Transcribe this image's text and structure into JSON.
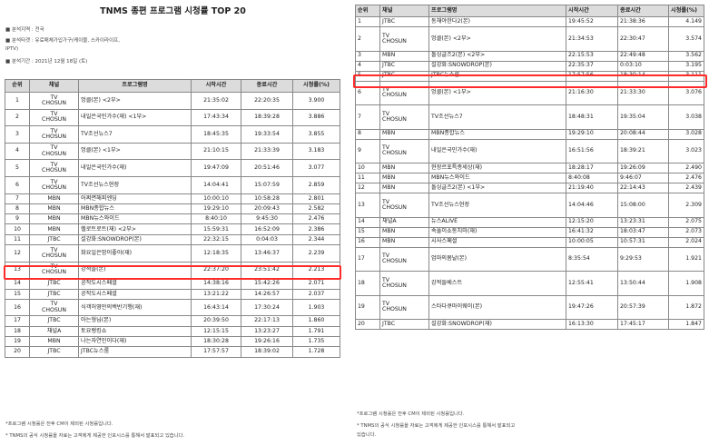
{
  "left": {
    "title": "TNMS 종편 프로그램 시청률 TOP 20",
    "meta": [
      "■ 분석지역 : 전국",
      "■ 분석타겟 : 유료매체가입가구(케이블, 스카이라이프,",
      "IPTV)",
      "■ 분석기간 : 2021년 12월 18일 (토)"
    ],
    "headers": [
      "순위",
      "채널",
      "프로그램명",
      "시작시간",
      "종료시간",
      "시청률(%)"
    ],
    "rows": [
      [
        "1",
        "TV\nCHOSUN",
        "엉클(본) <2부>",
        "21:35:02",
        "22:20:35",
        "3.900"
      ],
      [
        "2",
        "TV\nCHOSUN",
        "내일은국민가수(재) <1부>",
        "17:43:34",
        "18:39:28",
        "3.886"
      ],
      [
        "3",
        "TV\nCHOSUN",
        "TV조선뉴스7",
        "18:45:35",
        "19:33:54",
        "3.855"
      ],
      [
        "4",
        "TV\nCHOSUN",
        "엉클(본) <1부>",
        "21:10:15",
        "21:33:39",
        "3.183"
      ],
      [
        "5",
        "TV\nCHOSUN",
        "내일은국민가수(재)",
        "19:47:09",
        "20:51:46",
        "3.077"
      ],
      [
        "6",
        "TV\nCHOSUN",
        "TV조선뉴스현장",
        "14:04:41",
        "15:07:59",
        "2.859"
      ],
      [
        "7",
        "MBN",
        "어쩌면해피엔딩",
        "10:00:10",
        "10:58:28",
        "2.801"
      ],
      [
        "8",
        "MBN",
        "MBN종합뉴스",
        "19:29:10",
        "20:09:43",
        "2.582"
      ],
      [
        "9",
        "MBN",
        "MBN뉴스와이드",
        "8:40:10",
        "9:45:30",
        "2.476"
      ],
      [
        "10",
        "MBN",
        "헬로트로트(재) <2부>",
        "15:59:31",
        "16:52:09",
        "2.386"
      ],
      [
        "11",
        "JTBC",
        "설강화:SNOWDROP(본)",
        "22:32:15",
        "0:04:03",
        "2.344"
      ],
      [
        "12",
        "TV\nCHOSUN",
        "화요일은밤이좋아(재)",
        "12:18:35",
        "13:46:37",
        "2.239"
      ],
      [
        "13",
        "TV\nCHOSUN",
        "강적들(본)",
        "22:37:20",
        "23:51:42",
        "2.213"
      ],
      [
        "14",
        "JTBC",
        "공작도시스페셜",
        "14:38:16",
        "15:42:26",
        "2.071"
      ],
      [
        "15",
        "JTBC",
        "공작도시스페셜",
        "13:21:22",
        "14:26:57",
        "2.037"
      ],
      [
        "16",
        "TV\nCHOSUN",
        "식객허영만의백반기행(재)",
        "16:43:14",
        "17:30:24",
        "1.903"
      ],
      [
        "17",
        "JTBC",
        "아는형님(본)",
        "20:39:50",
        "22:17:13",
        "1.860"
      ],
      [
        "18",
        "채널A",
        "토요랭킹쇼",
        "12:15:15",
        "13:23:27",
        "1.791"
      ],
      [
        "19",
        "MBN",
        "나는자연인이다(재)",
        "18:30:28",
        "19:26:16",
        "1.735"
      ],
      [
        "20",
        "JTBC",
        "JTBC뉴스룸",
        "17:57:57",
        "18:39:02",
        "1.728"
      ]
    ],
    "notes": [
      "*프로그램 시청률은 전후 CM이 제외된 시청률입니다.",
      "* TNMS의 공식 시청률을 자료는 고객에게 제공한 인포시스를 통해서 발표되고 있습니다."
    ]
  },
  "right": {
    "headers": [
      "순위",
      "채널",
      "프로그램명",
      "시작시간",
      "종료시간",
      "시청률(%)"
    ],
    "rows": [
      [
        "1",
        "JTBC",
        "동채야한다2(본)",
        "19:45:52",
        "21:38:36",
        "4.149"
      ],
      [
        "2",
        "TV\nCHOSUN",
        "엉클(본) <2부>",
        "21:34:53",
        "22:30:47",
        "3.574"
      ],
      [
        "3",
        "MBN",
        "돌싱글즈2(본) <2부>",
        "22:15:53",
        "22:49:48",
        "3.562"
      ],
      [
        "4",
        "JTBC",
        "설강화:SNOWDROP(본)",
        "22:35:37",
        "0:03:10",
        "3.195"
      ],
      [
        "5",
        "JTBC",
        "JTBC뉴스룸",
        "17:57:56",
        "18:30:14",
        "3.111"
      ],
      [
        "6",
        "TV\nCHOSUN",
        "엉클(본) <1부>",
        "21:16:30",
        "21:33:30",
        "3.076"
      ],
      [
        "7",
        "TV\nCHOSUN",
        "TV조선뉴스7",
        "18:48:31",
        "19:35:04",
        "3.038"
      ],
      [
        "8",
        "MBN",
        "MBN종합뉴스",
        "19:29:10",
        "20:08:44",
        "3.028"
      ],
      [
        "9",
        "TV\nCHOSUN",
        "내일은국민가수(재)",
        "16:51:56",
        "18:39:21",
        "3.023"
      ],
      [
        "10",
        "MBN",
        "현장르포특종세상(재)",
        "18:28:17",
        "19:26:09",
        "2.490"
      ],
      [
        "11",
        "MBN",
        "MBN뉴스와이드",
        "8:40:08",
        "9:46:07",
        "2.476"
      ],
      [
        "12",
        "MBN",
        "돌싱글즈2(본) <1부>",
        "21:19:40",
        "22:14:43",
        "2.439"
      ],
      [
        "13",
        "TV\nCHOSUN",
        "TV조선뉴스현장",
        "14:04:46",
        "15:08:00",
        "2.309"
      ],
      [
        "14",
        "채널A",
        "뉴스ALIVE",
        "12:15:20",
        "13:23:31",
        "2.075"
      ],
      [
        "15",
        "MBN",
        "속풀이쇼동치미(재)",
        "16:41:32",
        "18:03:47",
        "2.073"
      ],
      [
        "16",
        "MBN",
        "시사스페셜",
        "10:00:05",
        "10:57:31",
        "2.024"
      ],
      [
        "17",
        "TV\nCHOSUN",
        "엄마의봄날(본)",
        "8:35:54",
        "9:29:53",
        "1.921"
      ],
      [
        "18",
        "TV\nCHOSUN",
        "강적들베스트",
        "12:55:41",
        "13:50:44",
        "1.908"
      ],
      [
        "19",
        "TV\nCHOSUN",
        "스타다큐마이웨이(본)",
        "19:47:26",
        "20:57:39",
        "1.872"
      ],
      [
        "20",
        "JTBC",
        "설강화:SNOWDROP(재)",
        "16:13:30",
        "17:45:17",
        "1.847"
      ]
    ],
    "notes": [
      "*프로그램 시청률은 전후 CM이 제외된 시청률입니다.",
      "* TNMS의 공식 시청률을 자료는 고객에게 제공한 인포시스를 통해서 발표되고",
      "있습니다."
    ]
  },
  "highlight_color": "#ff2a2a"
}
